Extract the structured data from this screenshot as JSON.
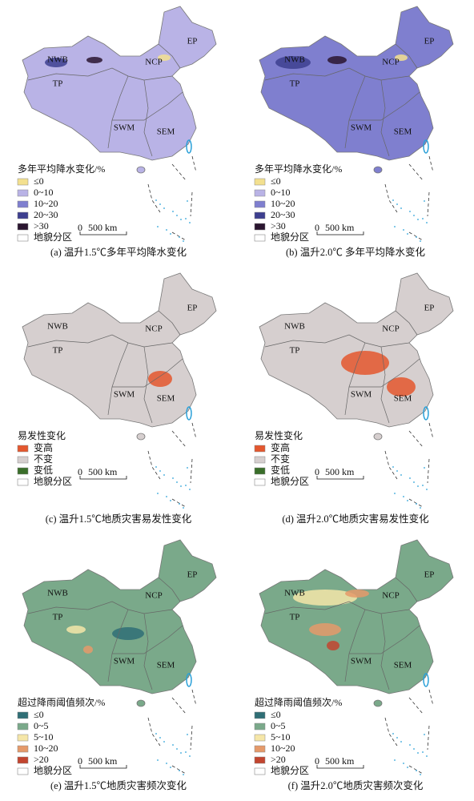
{
  "panels": [
    {
      "caption": "(a) 温升1.5℃多年平均降水变化",
      "regions": [
        "NWB",
        "EP",
        "NCP",
        "TP",
        "SWM",
        "SEM"
      ],
      "legend": {
        "title": "多年平均降水变化/%",
        "items": [
          {
            "label": "≤0",
            "color": "#f3e08f"
          },
          {
            "label": "0~10",
            "color": "#b9b3e6"
          },
          {
            "label": "10~20",
            "color": "#7f7fcf"
          },
          {
            "label": "20~30",
            "color": "#3d3f8f"
          },
          {
            "label": ">30",
            "color": "#2a1530"
          }
        ],
        "boundary_label": "地貌分区"
      },
      "scale": {
        "zero": "0",
        "distance": "500 km"
      }
    },
    {
      "caption": "(b) 温升2.0℃ 多年平均降水变化",
      "regions": [
        "NWB",
        "EP",
        "NCP",
        "TP",
        "SWM",
        "SEM"
      ],
      "legend": {
        "title": "多年平均降水变化/%",
        "items": [
          {
            "label": "≤0",
            "color": "#f3e08f"
          },
          {
            "label": "0~10",
            "color": "#b9b3e6"
          },
          {
            "label": "10~20",
            "color": "#7f7fcf"
          },
          {
            "label": "20~30",
            "color": "#3d3f8f"
          },
          {
            "label": ">30",
            "color": "#2a1530"
          }
        ],
        "boundary_label": "地貌分区"
      },
      "scale": {
        "zero": "0",
        "distance": "500 km"
      }
    },
    {
      "caption": "(c) 温升1.5℃地质灾害易发性变化",
      "regions": [
        "NWB",
        "EP",
        "NCP",
        "TP",
        "SWM",
        "SEM"
      ],
      "legend": {
        "title": "易发性变化",
        "items": [
          {
            "label": "变高",
            "color": "#e4572e"
          },
          {
            "label": "不变",
            "color": "#d6cfcf"
          },
          {
            "label": "变低",
            "color": "#3a6e2a"
          }
        ],
        "boundary_label": "地貌分区"
      },
      "scale": {
        "zero": "0",
        "distance": "500 km"
      }
    },
    {
      "caption": "(d) 温升2.0℃地质灾害易发性变化",
      "regions": [
        "NWB",
        "EP",
        "NCP",
        "TP",
        "SWM",
        "SEM"
      ],
      "legend": {
        "title": "易发性变化",
        "items": [
          {
            "label": "变高",
            "color": "#e4572e"
          },
          {
            "label": "不变",
            "color": "#d6cfcf"
          },
          {
            "label": "变低",
            "color": "#3a6e2a"
          }
        ],
        "boundary_label": "地貌分区"
      },
      "scale": {
        "zero": "0",
        "distance": "500 km"
      }
    },
    {
      "caption": "(e) 温升1.5℃地质灾害频次变化",
      "regions": [
        "NWB",
        "EP",
        "NCP",
        "TP",
        "SWM",
        "SEM"
      ],
      "legend": {
        "title": "超过降雨阈值频次/%",
        "items": [
          {
            "label": "≤0",
            "color": "#2f6e75"
          },
          {
            "label": "0~5",
            "color": "#7aa98a"
          },
          {
            "label": "5~10",
            "color": "#f5e6a8"
          },
          {
            "label": "10~20",
            "color": "#e59a6a"
          },
          {
            "label": ">20",
            "color": "#c2452f"
          }
        ],
        "boundary_label": "地貌分区"
      },
      "scale": {
        "zero": "0",
        "distance": "500 km"
      }
    },
    {
      "caption": "(f) 温升2.0℃地质灾害频次变化",
      "regions": [
        "NWB",
        "EP",
        "NCP",
        "TP",
        "SWM",
        "SEM"
      ],
      "legend": {
        "title": "超过降雨阈值频次/%",
        "items": [
          {
            "label": "≤0",
            "color": "#2f6e75"
          },
          {
            "label": "0~5",
            "color": "#7aa98a"
          },
          {
            "label": "5~10",
            "color": "#f5e6a8"
          },
          {
            "label": "10~20",
            "color": "#e59a6a"
          },
          {
            "label": ">20",
            "color": "#c2452f"
          }
        ],
        "boundary_label": "地貌分区"
      },
      "scale": {
        "zero": "0",
        "distance": "500 km"
      }
    }
  ]
}
